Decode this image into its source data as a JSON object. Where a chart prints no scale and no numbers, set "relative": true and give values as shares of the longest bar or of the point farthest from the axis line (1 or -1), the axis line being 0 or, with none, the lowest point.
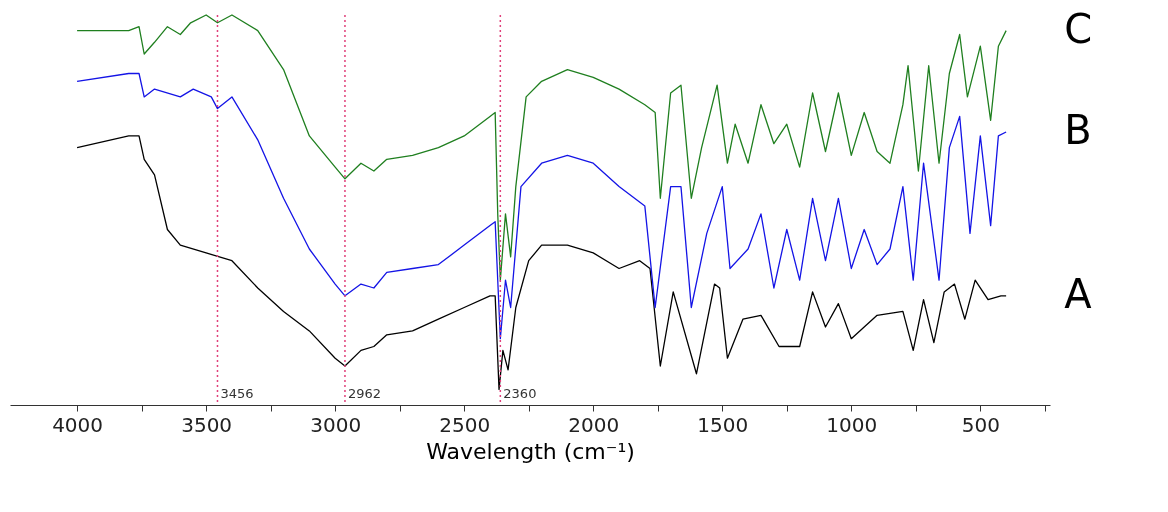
{
  "chart_data": {
    "type": "line",
    "relative": true,
    "xlabel": "Wavelength (cm⁻¹)",
    "xlim": [
      4260,
      230
    ],
    "xticks": [
      4000,
      {
        "value": 3750,
        "label": null
      },
      3500,
      {
        "value": 3250,
        "label": null
      },
      3000,
      {
        "value": 2750,
        "label": null
      },
      2500,
      {
        "value": 2250,
        "label": null
      },
      2000,
      {
        "value": 1750,
        "label": null
      },
      1500,
      {
        "value": 1250,
        "label": null
      },
      1000,
      {
        "value": 750,
        "label": null
      },
      500,
      {
        "value": 250,
        "label": null
      }
    ],
    "grid": false,
    "line_style": "solid",
    "marker": "none",
    "ref_lines": [
      {
        "axis": "x",
        "value": 3456,
        "label": "3456",
        "color": "#e0407a",
        "line_style": "dotted"
      },
      {
        "axis": "x",
        "value": 2962,
        "label": "2962",
        "color": "#e0407a",
        "line_style": "dotted"
      },
      {
        "axis": "x",
        "value": 2360,
        "label": "2360",
        "color": "#e0407a",
        "line_style": "dotted"
      }
    ],
    "series": [
      {
        "name": "A",
        "color": "#000000",
        "x": [
          4000,
          3800,
          3760,
          3740,
          3700,
          3650,
          3600,
          3500,
          3400,
          3300,
          3200,
          3100,
          3000,
          2962,
          2900,
          2850,
          2800,
          2700,
          2600,
          2500,
          2400,
          2380,
          2365,
          2350,
          2330,
          2300,
          2250,
          2200,
          2100,
          2000,
          1900,
          1820,
          1780,
          1740,
          1690,
          1600,
          1530,
          1510,
          1480,
          1420,
          1350,
          1280,
          1200,
          1150,
          1100,
          1050,
          1000,
          950,
          900,
          800,
          760,
          720,
          680,
          640,
          600,
          560,
          520,
          470,
          420,
          400
        ],
        "values": [
          0.66,
          0.69,
          0.69,
          0.63,
          0.59,
          0.45,
          0.41,
          0.39,
          0.37,
          0.3,
          0.24,
          0.19,
          0.12,
          0.1,
          0.14,
          0.15,
          0.18,
          0.19,
          0.22,
          0.25,
          0.28,
          0.28,
          0.04,
          0.14,
          0.09,
          0.25,
          0.37,
          0.41,
          0.41,
          0.39,
          0.35,
          0.37,
          0.35,
          0.1,
          0.29,
          0.08,
          0.31,
          0.3,
          0.12,
          0.22,
          0.23,
          0.15,
          0.15,
          0.29,
          0.2,
          0.26,
          0.17,
          0.2,
          0.23,
          0.24,
          0.14,
          0.27,
          0.16,
          0.29,
          0.31,
          0.22,
          0.32,
          0.27,
          0.28,
          0.28
        ]
      },
      {
        "name": "B",
        "color": "#1414e6",
        "x": [
          4000,
          3800,
          3760,
          3740,
          3700,
          3600,
          3550,
          3480,
          3456,
          3400,
          3300,
          3200,
          3100,
          3000,
          2962,
          2900,
          2850,
          2800,
          2700,
          2600,
          2500,
          2400,
          2380,
          2360,
          2340,
          2320,
          2280,
          2200,
          2100,
          2000,
          1900,
          1800,
          1760,
          1700,
          1660,
          1620,
          1560,
          1500,
          1470,
          1400,
          1350,
          1300,
          1250,
          1200,
          1150,
          1100,
          1050,
          1000,
          950,
          900,
          850,
          800,
          760,
          720,
          660,
          620,
          580,
          540,
          500,
          460,
          430,
          400
        ],
        "values": [
          0.83,
          0.85,
          0.85,
          0.79,
          0.81,
          0.79,
          0.81,
          0.79,
          0.76,
          0.79,
          0.68,
          0.53,
          0.4,
          0.31,
          0.28,
          0.31,
          0.3,
          0.34,
          0.35,
          0.36,
          0.41,
          0.46,
          0.47,
          0.17,
          0.32,
          0.25,
          0.56,
          0.62,
          0.64,
          0.62,
          0.56,
          0.51,
          0.25,
          0.56,
          0.56,
          0.25,
          0.44,
          0.56,
          0.35,
          0.4,
          0.49,
          0.3,
          0.45,
          0.32,
          0.53,
          0.37,
          0.53,
          0.35,
          0.45,
          0.36,
          0.4,
          0.56,
          0.32,
          0.62,
          0.32,
          0.66,
          0.74,
          0.44,
          0.69,
          0.46,
          0.69,
          0.7
        ]
      },
      {
        "name": "C",
        "color": "#1f7f1f",
        "x": [
          4000,
          3800,
          3760,
          3740,
          3700,
          3650,
          3600,
          3560,
          3500,
          3456,
          3400,
          3300,
          3200,
          3100,
          3000,
          2962,
          2900,
          2850,
          2800,
          2700,
          2600,
          2500,
          2400,
          2380,
          2370,
          2360,
          2340,
          2320,
          2300,
          2260,
          2200,
          2100,
          2000,
          1900,
          1800,
          1760,
          1740,
          1700,
          1660,
          1620,
          1580,
          1520,
          1480,
          1450,
          1400,
          1350,
          1300,
          1250,
          1200,
          1150,
          1100,
          1050,
          1000,
          950,
          900,
          850,
          800,
          780,
          740,
          700,
          660,
          620,
          580,
          550,
          500,
          460,
          430,
          400
        ],
        "values": [
          0.96,
          0.96,
          0.97,
          0.9,
          0.93,
          0.97,
          0.95,
          0.98,
          1.0,
          0.98,
          1.0,
          0.96,
          0.86,
          0.69,
          0.61,
          0.58,
          0.62,
          0.6,
          0.63,
          0.64,
          0.66,
          0.69,
          0.74,
          0.75,
          0.49,
          0.32,
          0.49,
          0.38,
          0.56,
          0.79,
          0.83,
          0.86,
          0.84,
          0.81,
          0.77,
          0.75,
          0.53,
          0.8,
          0.82,
          0.53,
          0.66,
          0.82,
          0.62,
          0.72,
          0.62,
          0.77,
          0.67,
          0.72,
          0.61,
          0.8,
          0.65,
          0.8,
          0.64,
          0.75,
          0.65,
          0.62,
          0.77,
          0.87,
          0.6,
          0.87,
          0.62,
          0.85,
          0.95,
          0.79,
          0.92,
          0.73,
          0.92,
          0.96
        ]
      }
    ]
  }
}
